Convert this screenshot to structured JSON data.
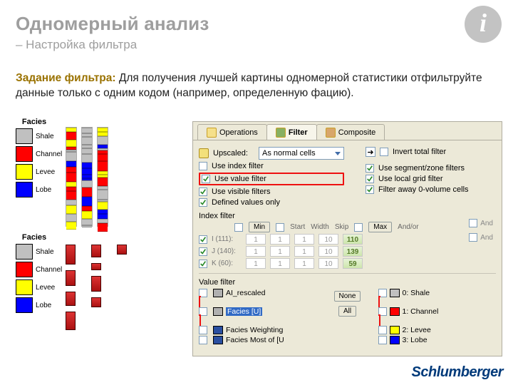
{
  "title": "Одномерный анализ",
  "subtitle": "– Настройка фильтра",
  "desc_lead": "Задание фильтра:",
  "desc_body": "Для получения лучшей картины одномерной статистики отфильтруйте данные только с одним кодом (например, определенную фацию).",
  "facies": {
    "header": "Facies",
    "items": [
      {
        "label": "Shale",
        "color": "#c0c0c0"
      },
      {
        "label": "Channel",
        "color": "#ff0000"
      },
      {
        "label": "Levee",
        "color": "#ffff00"
      },
      {
        "label": "Lobe",
        "color": "#0000ff"
      }
    ]
  },
  "dialog": {
    "tabs": {
      "operations": "Operations",
      "filter": "Filter",
      "composite": "Composite"
    },
    "upscaled_label": "Upscaled:",
    "upscaled_value": "As normal cells",
    "left_checks": {
      "use_index": "Use index filter",
      "use_value": "Use value filter",
      "use_visible": "Use visible filters",
      "defined_only": "Defined values only"
    },
    "right_checks": {
      "invert": "Invert total filter",
      "segzone": "Use segment/zone filters",
      "localgrid": "Use local grid filter",
      "zero_vol": "Filter away 0-volume cells"
    },
    "index_filter": {
      "title": "Index filter",
      "cols": {
        "min": "Min",
        "start": "Start",
        "width": "Width",
        "skip": "Skip",
        "max": "Max",
        "andor": "And/or"
      },
      "rows": [
        {
          "name": "I (111):",
          "min": "1",
          "start": "1",
          "width": "1",
          "skip": "10",
          "max": "110"
        },
        {
          "name": "J (140):",
          "min": "1",
          "start": "1",
          "width": "1",
          "skip": "10",
          "max": "139"
        },
        {
          "name": "K (60):",
          "min": "1",
          "start": "1",
          "width": "1",
          "skip": "10",
          "max": "59"
        }
      ],
      "and_label": "And"
    },
    "value_filter": {
      "title": "Value filter",
      "left_items": [
        {
          "label": "AI_rescaled",
          "icon": "#b0b0b0"
        },
        {
          "label": "Facies [U]",
          "icon": "#b0b0b0",
          "selected": true
        },
        {
          "label": "Facies Weighting",
          "icon": "#2a4fa0"
        },
        {
          "label": "Facies Most of [U",
          "icon": "#2a4fa0"
        }
      ],
      "btn_none": "None",
      "btn_all": "All",
      "right_items": [
        {
          "label": "0: Shale",
          "color": "#c0c0c0"
        },
        {
          "label": "1: Channel",
          "color": "#ff0000",
          "selected": true
        },
        {
          "label": "2: Levee",
          "color": "#ffff00"
        },
        {
          "label": "3: Lobe",
          "color": "#0000ff"
        }
      ]
    }
  },
  "brand": "Schlumberger",
  "colors": {
    "highlight": "#e11111"
  }
}
